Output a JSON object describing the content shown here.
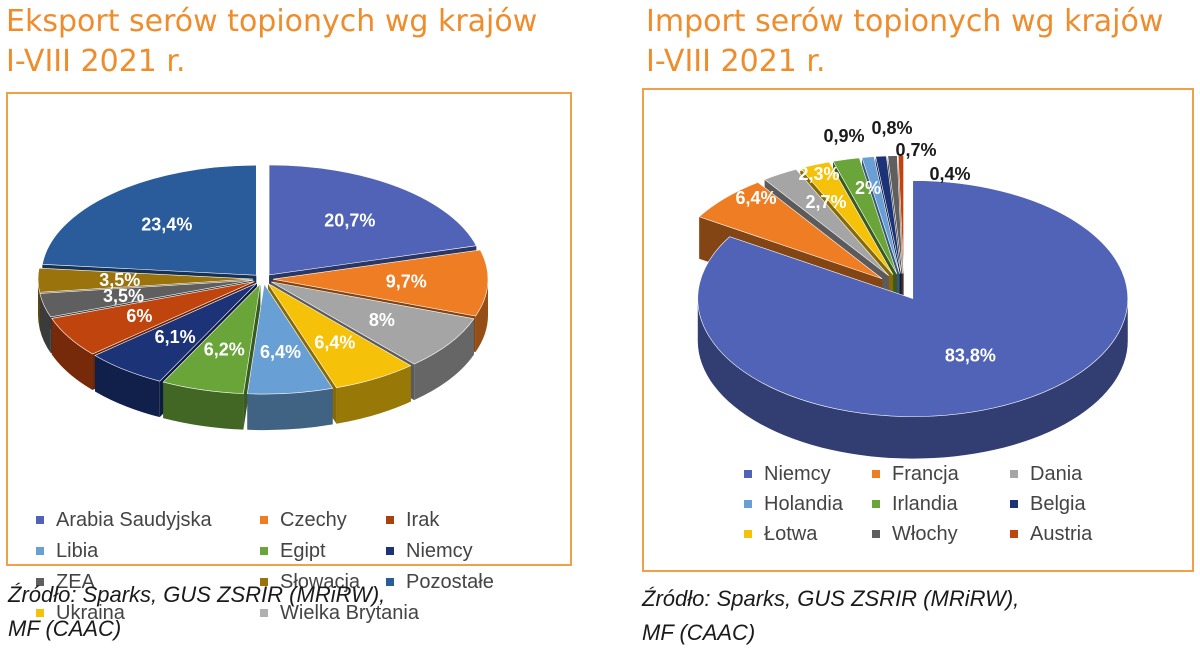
{
  "colors": {
    "title": "#ef8c2b",
    "frame": "#f0a04a",
    "slice_palette": [
      "#5063b6",
      "#ee7d24",
      "#a5a5a5",
      "#f5c109",
      "#689fd4",
      "#6aa53a",
      "#1c3377",
      "#8f4310",
      "#5f5f5f",
      "#8e6b0a",
      "#2a5b9a",
      "#c8c8c8"
    ]
  },
  "left": {
    "title_line1": "Eksport serów topionych wg krajów",
    "title_line2": "I-VIII 2021 r.",
    "source_line1": "Źródło: Sparks, GUS ZSRIR (MRiRW),",
    "source_line2": "MF (CAAC)",
    "legend": [
      {
        "label": "Arabia Saudyjska",
        "color": "#5063b6"
      },
      {
        "label": "Czechy",
        "color": "#ee7d24"
      },
      {
        "label": "Irak",
        "color": "#a8420c"
      },
      {
        "label": "Libia",
        "color": "#689fd4"
      },
      {
        "label": "Egipt",
        "color": "#6aa53a"
      },
      {
        "label": "Niemcy",
        "color": "#1c3377"
      },
      {
        "label": "ZEA",
        "color": "#5f5f5f"
      },
      {
        "label": "Słowacja",
        "color": "#9a730d"
      },
      {
        "label": "Pozostałe",
        "color": "#2a5b9a"
      },
      {
        "label": "Ukraina",
        "color": "#f5c109"
      },
      {
        "label": "Wielka Brytania",
        "color": "#b0b0b0"
      }
    ]
  },
  "right": {
    "title_line1": "Import serów topionych wg krajów",
    "title_line2": "I-VIII 2021 r.",
    "source_line1": "Źródło: Sparks, GUS ZSRIR (MRiRW),",
    "source_line2": "MF (CAAC)",
    "legend": [
      {
        "label": "Niemcy",
        "color": "#5063b6"
      },
      {
        "label": "Francja",
        "color": "#ee7d24"
      },
      {
        "label": "Dania",
        "color": "#a5a5a5"
      },
      {
        "label": "Holandia",
        "color": "#689fd4"
      },
      {
        "label": "Irlandia",
        "color": "#6aa53a"
      },
      {
        "label": "Belgia",
        "color": "#1c3377"
      },
      {
        "label": "Łotwa",
        "color": "#f5c109"
      },
      {
        "label": "Włochy",
        "color": "#5f5f5f"
      },
      {
        "label": "Austria",
        "color": "#c0440e"
      }
    ]
  },
  "chart_data": [
    {
      "type": "pie",
      "title": "Eksport serów topionych wg krajów I-VIII 2021 r.",
      "categories": [
        "Arabia Saudyjska",
        "Czechy",
        "Wielka Brytania",
        "Ukraina",
        "Libia",
        "Egipt",
        "Niemcy",
        "Irak",
        "ZEA",
        "Słowacja",
        "Pozostałe"
      ],
      "values": [
        20.7,
        9.7,
        8,
        6.4,
        6.4,
        6.2,
        6.1,
        6,
        3.5,
        3.5,
        23.4
      ],
      "labels": [
        "20,7%",
        "9,7%",
        "8%",
        "6,4%",
        "6,4%",
        "6,2%",
        "6,1%",
        "6%",
        "3,5%",
        "3,5%",
        "23,4%"
      ],
      "colors": [
        "#5063b6",
        "#ee7d24",
        "#a5a5a5",
        "#f5c109",
        "#689fd4",
        "#6aa53a",
        "#1c3377",
        "#c0440e",
        "#5f5f5f",
        "#9a730d",
        "#2a5b9a"
      ],
      "exploded": true,
      "legend_position": "bottom"
    },
    {
      "type": "pie",
      "title": "Import serów topionych wg krajów I-VIII 2021 r.",
      "categories": [
        "Niemcy",
        "Francja",
        "Dania",
        "Łotwa",
        "Irlandia",
        "Holandia",
        "Belgia",
        "Włochy",
        "Austria"
      ],
      "values": [
        83.8,
        6.4,
        2.7,
        2.3,
        2,
        0.9,
        0.8,
        0.7,
        0.4
      ],
      "labels": [
        "83,8%",
        "6,4%",
        "2,7%",
        "2,3%",
        "2%",
        "0,9%",
        "0,8%",
        "0,7%",
        "0,4%"
      ],
      "colors": [
        "#5063b6",
        "#ee7d24",
        "#a5a5a5",
        "#f5c109",
        "#6aa53a",
        "#689fd4",
        "#1c3377",
        "#5f5f5f",
        "#c0440e"
      ],
      "exploded": true,
      "legend_position": "bottom"
    }
  ]
}
